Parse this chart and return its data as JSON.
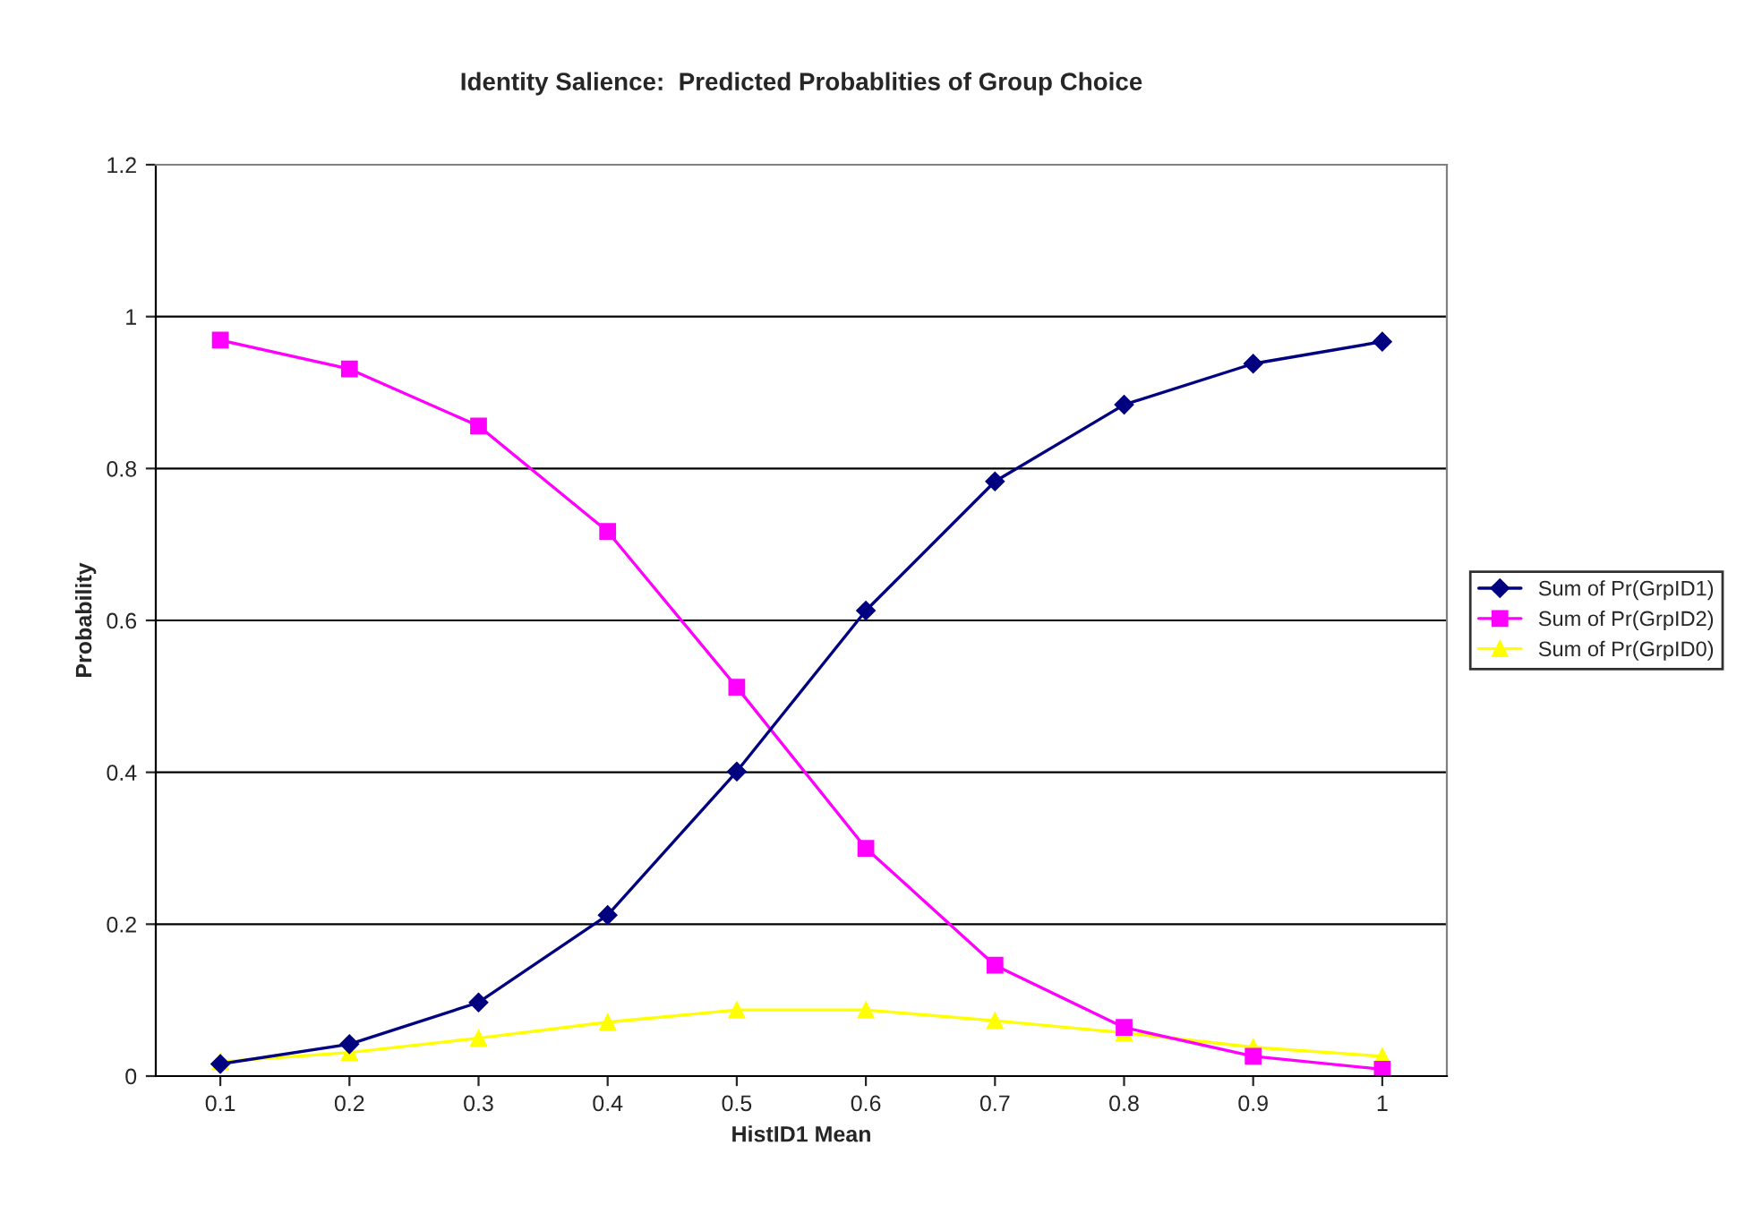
{
  "chart_data": {
    "type": "line",
    "title": "Identity Salience:  Predicted Probablities of Group Choice",
    "xlabel": "HistID1 Mean",
    "ylabel": "Probability",
    "categories": [
      "0.1",
      "0.2",
      "0.3",
      "0.4",
      "0.5",
      "0.6",
      "0.7",
      "0.8",
      "0.9",
      "1"
    ],
    "series": [
      {
        "name": "Sum of Pr(GrpID1)",
        "color": "#000080",
        "marker": "diamond",
        "values": [
          0.016,
          0.042,
          0.097,
          0.212,
          0.401,
          0.613,
          0.783,
          0.884,
          0.938,
          0.967
        ]
      },
      {
        "name": "Sum of Pr(GrpID2)",
        "color": "#ff00ff",
        "marker": "square",
        "values": [
          0.969,
          0.931,
          0.856,
          0.717,
          0.512,
          0.3,
          0.146,
          0.064,
          0.026,
          0.009
        ]
      },
      {
        "name": "Sum of Pr(GrpID0)",
        "color": "#ffff00",
        "marker": "triangle",
        "values": [
          0.019,
          0.031,
          0.05,
          0.071,
          0.087,
          0.087,
          0.073,
          0.057,
          0.038,
          0.026
        ]
      }
    ],
    "ylim": [
      0,
      1.2
    ],
    "yticks": [
      {
        "value": 0,
        "label": "0"
      },
      0.2,
      0.4,
      0.6,
      0.8,
      {
        "value": 1,
        "label": "1"
      },
      1.2
    ],
    "grid": "y",
    "legend": "right",
    "line_style": "solid"
  }
}
